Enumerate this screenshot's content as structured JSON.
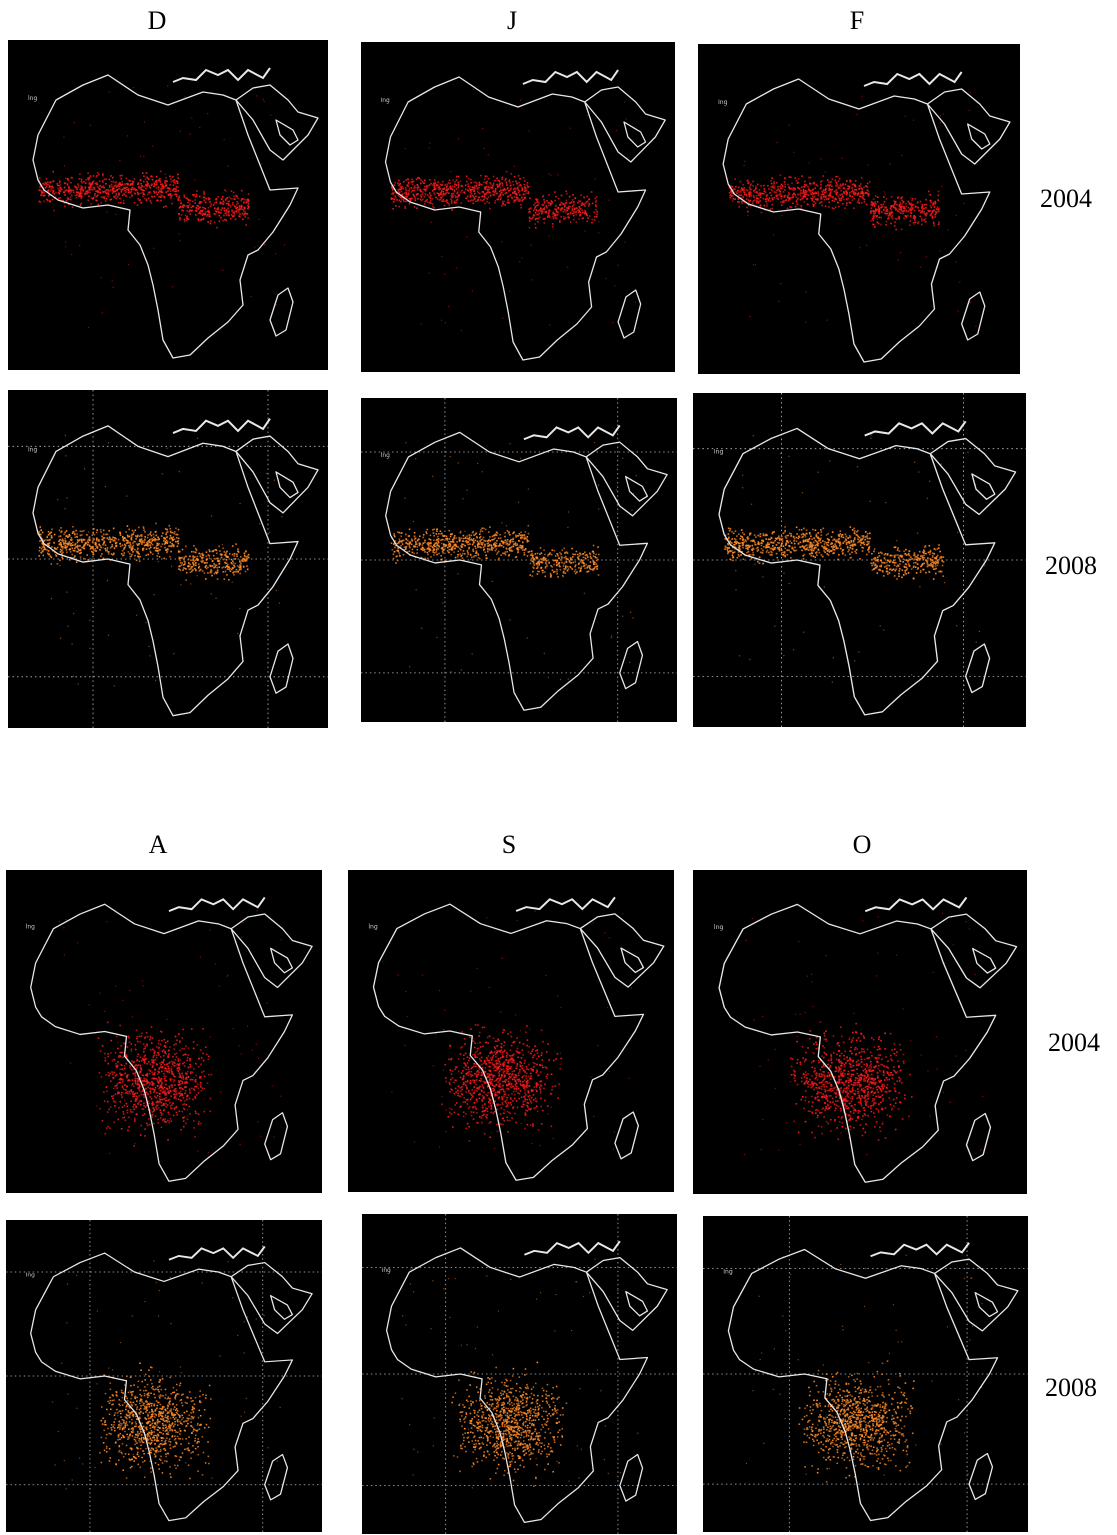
{
  "figure": {
    "group_top": {
      "months": [
        "D",
        "J",
        "F"
      ],
      "years": [
        "2004",
        "2008"
      ]
    },
    "group_bottom": {
      "months": [
        "A",
        "S",
        "O"
      ],
      "years": [
        "2004",
        "2008"
      ]
    }
  },
  "colors": {
    "fire_2004": "#ff1a1a",
    "fire_2008": "#ff8c2a",
    "coastline": "#e8e8e8",
    "background": "#000000",
    "page": "#ffffff"
  },
  "legend_glyphs": {
    "map_corner_text": "lng"
  }
}
